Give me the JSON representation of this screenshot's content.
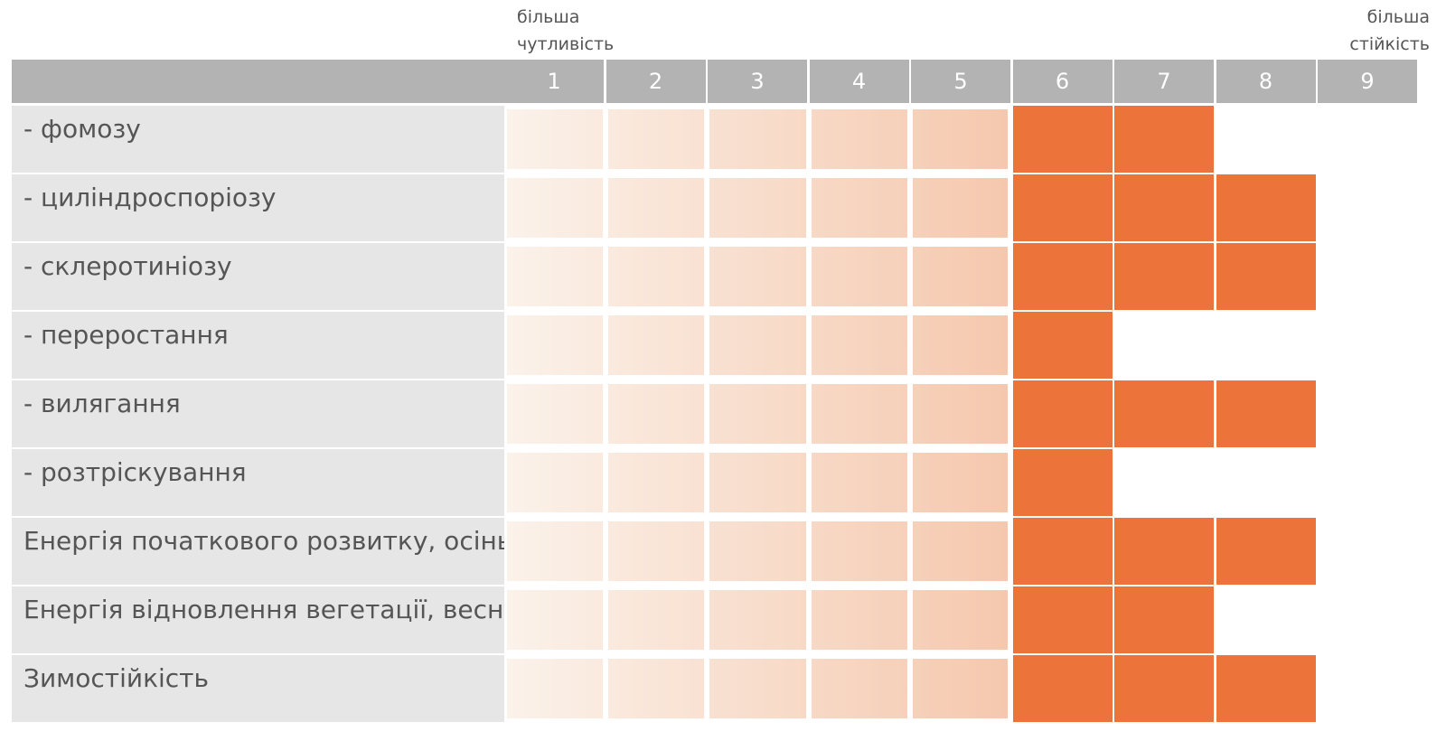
{
  "notes": {
    "left_line1": "більша",
    "left_line2": "чутливість",
    "right_line1": "більша",
    "right_line2": "стійкість"
  },
  "colors": {
    "header": "#b3b3b3",
    "label_bg": "#e6e6e6",
    "accent": "#ec733a",
    "gradient_light": "#fbf2ea",
    "gradient_dark": "#f5c8ae"
  },
  "chart_data": {
    "type": "table",
    "columns": [
      "1",
      "2",
      "3",
      "4",
      "5",
      "6",
      "7",
      "8",
      "9"
    ],
    "rows": [
      {
        "label": "- фомозу",
        "value": 7
      },
      {
        "label": "- циліндроспоріозу",
        "value": 8
      },
      {
        "label": "- склеротиніозу",
        "value": 8
      },
      {
        "label": "- переростання",
        "value": 6
      },
      {
        "label": "- вилягання",
        "value": 8
      },
      {
        "label": "- розтріскування",
        "value": 6
      },
      {
        "label": "Енергія початкового розвитку, осінь",
        "value": 8
      },
      {
        "label": "Енергія відновлення вегетації, весна",
        "value": 7
      },
      {
        "label": "Зимостійкість",
        "value": 8
      }
    ],
    "scale_min": 1,
    "scale_max": 9
  }
}
